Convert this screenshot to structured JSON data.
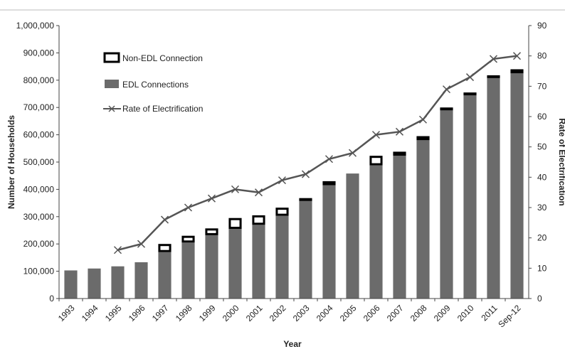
{
  "chart_data": {
    "type": "bar",
    "xlabel": "Year",
    "ylabel": "Number of Households",
    "y2label": "Rate of Electrification",
    "ylim": [
      0,
      1000000
    ],
    "y2lim": [
      0,
      90
    ],
    "ytick_labels": [
      "0",
      "100,000",
      "200,000",
      "300,000",
      "400,000",
      "500,000",
      "600,000",
      "700,000",
      "800,000",
      "900,000",
      "1,000,000"
    ],
    "y2tick_labels": [
      "0",
      "10",
      "20",
      "30",
      "40",
      "50",
      "60",
      "70",
      "80",
      "90"
    ],
    "categories": [
      "1993",
      "1994",
      "1995",
      "1996",
      "1997",
      "1998",
      "1999",
      "2000",
      "2001",
      "2002",
      "2003",
      "2004",
      "2005",
      "2006",
      "2007",
      "2008",
      "2009",
      "2010",
      "2011",
      "Sep-12"
    ],
    "legend_placement": "top-left",
    "grid": false,
    "series": [
      {
        "name": "EDL Connections",
        "kind": "bar",
        "color": "#6b6b6b",
        "values": [
          103000,
          110000,
          118000,
          133000,
          170000,
          205000,
          232000,
          255000,
          270000,
          303000,
          363000,
          415000,
          458000,
          488000,
          523000,
          580000,
          690000,
          745000,
          808000,
          825000
        ]
      },
      {
        "name": "Non-EDL Connection",
        "kind": "stacked-bar",
        "color": "#ffffff",
        "values": [
          0,
          0,
          0,
          0,
          30000,
          25000,
          25000,
          40000,
          35000,
          30000,
          5000,
          15000,
          0,
          35000,
          15000,
          15000,
          10000,
          10000,
          10000,
          15000
        ]
      },
      {
        "name": "Rate of Electrification",
        "kind": "line",
        "axis": "right",
        "color": "#555555",
        "values": [
          null,
          null,
          16,
          18,
          26,
          30,
          33,
          36,
          35,
          39,
          41,
          46,
          48,
          54,
          55,
          59,
          69,
          73,
          79,
          80
        ]
      }
    ]
  }
}
